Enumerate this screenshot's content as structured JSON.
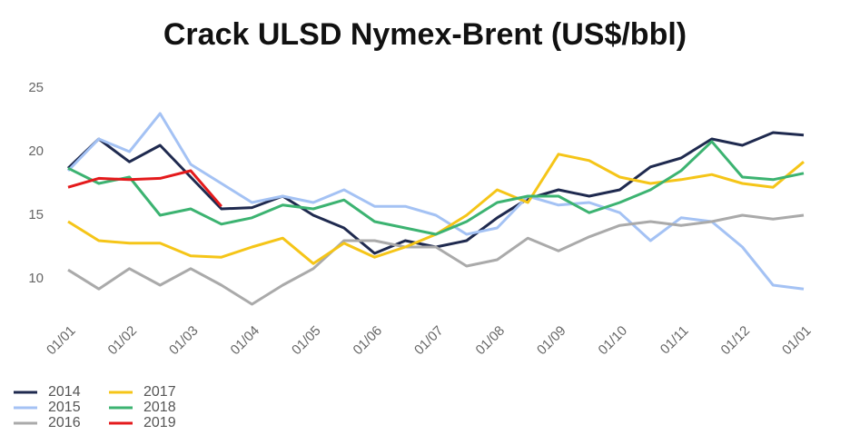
{
  "chart_data": {
    "type": "line",
    "title": "Crack ULSD Nymex-Brent (US$/bbl)",
    "categories": [
      "01/01",
      null,
      "01/02",
      null,
      "01/03",
      null,
      "01/04",
      null,
      "01/05",
      null,
      "01/06",
      null,
      "01/07",
      null,
      "01/08",
      null,
      "01/09",
      null,
      "01/10",
      null,
      "01/11",
      null,
      "01/12",
      null,
      "01/01"
    ],
    "ylim": [
      7,
      25
    ],
    "yticks": [
      10,
      15,
      20,
      25
    ],
    "grid": false,
    "legend": "bottom-left",
    "series": [
      {
        "name": "2014",
        "color": "#1f2a4f",
        "values": [
          18.7,
          21.0,
          19.2,
          20.5,
          18.0,
          15.5,
          15.6,
          16.5,
          15.0,
          14.0,
          12.0,
          13.0,
          12.5,
          13.0,
          14.8,
          16.3,
          17.0,
          16.5,
          17.0,
          18.8,
          19.5,
          21.0,
          20.5,
          21.5,
          21.3
        ]
      },
      {
        "name": "2015",
        "color": "#a4c2f4",
        "values": [
          18.5,
          21.0,
          20.0,
          23.0,
          19.0,
          17.5,
          16.0,
          16.5,
          16.0,
          17.0,
          15.7,
          15.7,
          15.0,
          13.5,
          14.0,
          16.5,
          15.8,
          16.0,
          15.2,
          13.0,
          14.8,
          14.5,
          12.5,
          9.5,
          9.2
        ]
      },
      {
        "name": "2016",
        "color": "#aaaaaa",
        "values": [
          10.7,
          9.2,
          10.8,
          9.5,
          10.8,
          9.5,
          8.0,
          9.5,
          10.8,
          13.0,
          13.0,
          12.5,
          12.5,
          11.0,
          11.5,
          13.2,
          12.2,
          13.3,
          14.2,
          14.5,
          14.2,
          14.5,
          15.0,
          14.7,
          15.0
        ]
      },
      {
        "name": "2017",
        "color": "#f5c518",
        "values": [
          14.5,
          13.0,
          12.8,
          12.8,
          11.8,
          11.7,
          12.5,
          13.2,
          11.2,
          12.8,
          11.7,
          12.5,
          13.5,
          15.0,
          17.0,
          16.0,
          19.8,
          19.3,
          18.0,
          17.5,
          17.8,
          18.2,
          17.5,
          17.2,
          19.2
        ]
      },
      {
        "name": "2018",
        "color": "#3cb371",
        "values": [
          18.7,
          17.5,
          18.0,
          15.0,
          15.5,
          14.3,
          14.8,
          15.8,
          15.5,
          16.2,
          14.5,
          14.0,
          13.5,
          14.5,
          16.0,
          16.5,
          16.5,
          15.2,
          16.0,
          17.0,
          18.5,
          20.8,
          18.0,
          17.8,
          18.3
        ]
      },
      {
        "name": "2019",
        "color": "#e41a1c",
        "values": [
          17.2,
          17.9,
          17.8,
          17.9,
          18.5,
          15.7,
          null,
          null,
          null,
          null,
          null,
          null,
          null,
          null,
          null,
          null,
          null,
          null,
          null,
          null,
          null,
          null,
          null,
          null,
          null
        ]
      }
    ]
  }
}
